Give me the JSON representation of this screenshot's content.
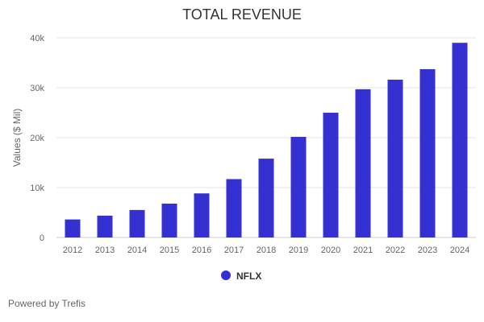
{
  "chart_data": {
    "type": "bar",
    "title": "TOTAL REVENUE",
    "xlabel": "",
    "ylabel": "Values ($ Mil)",
    "ylim": [
      0,
      40000
    ],
    "yticks": [
      0,
      10000,
      20000,
      30000,
      40000
    ],
    "ytick_labels": [
      "0",
      "10k",
      "20k",
      "30k",
      "40k"
    ],
    "grid": true,
    "legend_position": "bottom-center",
    "categories": [
      "2012",
      "2013",
      "2014",
      "2015",
      "2016",
      "2017",
      "2018",
      "2019",
      "2020",
      "2021",
      "2022",
      "2023",
      "2024"
    ],
    "series": [
      {
        "name": "NFLX",
        "color": "#3530d1",
        "values": [
          3609,
          4375,
          5505,
          6780,
          8831,
          11693,
          15794,
          20156,
          24996,
          29698,
          31616,
          33723,
          39000
        ]
      }
    ]
  },
  "footer": {
    "credit": "Powered by Trefis"
  }
}
